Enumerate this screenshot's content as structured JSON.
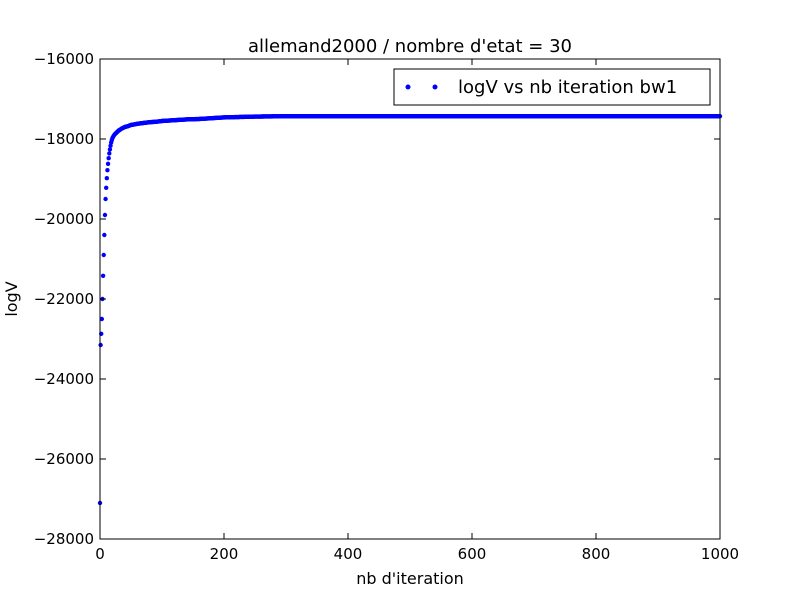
{
  "chart_data": {
    "type": "scatter",
    "title": "allemand2000 / nombre d'etat = 30",
    "xlabel": "nb d'iteration",
    "ylabel": "logV",
    "xlim": [
      0,
      1000
    ],
    "ylim": [
      -28000,
      -16000
    ],
    "xticks": [
      0,
      200,
      400,
      600,
      800,
      1000
    ],
    "yticks": [
      -28000,
      -26000,
      -24000,
      -22000,
      -20000,
      -18000,
      -16000
    ],
    "ytick_labels": [
      "−28000",
      "−26000",
      "−24000",
      "−22000",
      "−20000",
      "−18000",
      "−16000"
    ],
    "grid": false,
    "legend_position": "top-right",
    "series": [
      {
        "name": "logV vs nb iteration bw1",
        "color": "#0000ff",
        "marker": "dot",
        "x": [
          0,
          1,
          2,
          3,
          4,
          5,
          6,
          7,
          8,
          9,
          10,
          11,
          12,
          13,
          14,
          15,
          16,
          17,
          18,
          19,
          20,
          22,
          24,
          26,
          28,
          30,
          35,
          40,
          45,
          50,
          60,
          70,
          80,
          90,
          100,
          120,
          140,
          160,
          180,
          200,
          250,
          300,
          400,
          500,
          600,
          700,
          800,
          900,
          1000
        ],
        "y": [
          -27100,
          -23150,
          -22870,
          -22500,
          -22000,
          -21420,
          -20900,
          -20400,
          -19900,
          -19500,
          -19220,
          -18980,
          -18780,
          -18620,
          -18480,
          -18360,
          -18260,
          -18170,
          -18090,
          -18030,
          -17980,
          -17920,
          -17880,
          -17850,
          -17820,
          -17790,
          -17740,
          -17700,
          -17680,
          -17650,
          -17620,
          -17600,
          -17580,
          -17570,
          -17550,
          -17530,
          -17510,
          -17500,
          -17480,
          -17460,
          -17440,
          -17430,
          -17430,
          -17430,
          -17430,
          -17430,
          -17430,
          -17430,
          -17430
        ]
      }
    ]
  }
}
